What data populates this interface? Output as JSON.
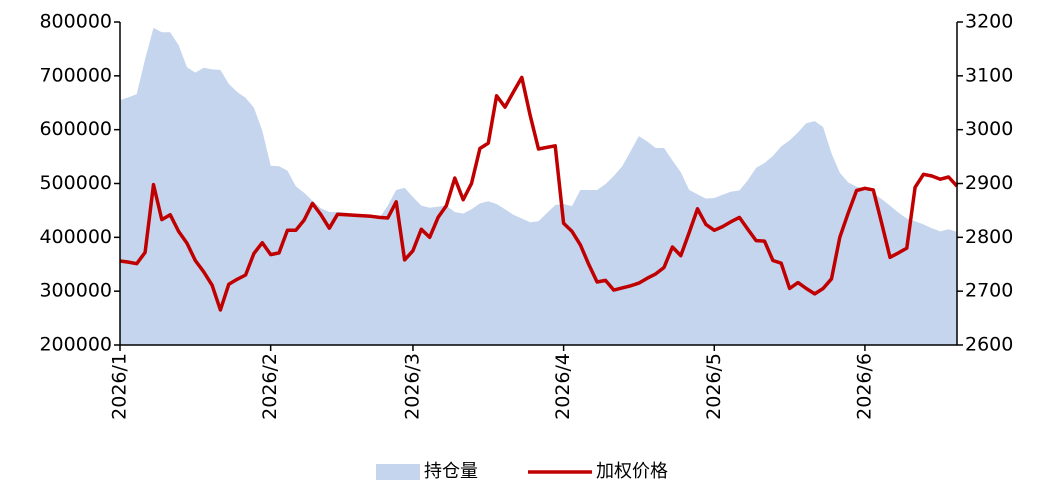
{
  "chart_data": {
    "type": "line",
    "categories": [
      "2026/1",
      null,
      null,
      null,
      null,
      null,
      null,
      null,
      null,
      null,
      null,
      null,
      null,
      null,
      null,
      null,
      null,
      null,
      "2026/2",
      null,
      null,
      null,
      null,
      null,
      null,
      null,
      null,
      null,
      null,
      null,
      null,
      null,
      null,
      null,
      null,
      "2026/3",
      null,
      null,
      null,
      null,
      null,
      null,
      null,
      null,
      null,
      null,
      null,
      null,
      null,
      null,
      null,
      null,
      null,
      "2026/4",
      null,
      null,
      null,
      null,
      null,
      null,
      null,
      null,
      null,
      null,
      null,
      null,
      null,
      null,
      null,
      null,
      null,
      "2026/5",
      null,
      null,
      null,
      null,
      null,
      null,
      null,
      null,
      null,
      null,
      null,
      null,
      null,
      null,
      null,
      null,
      null,
      "2026/6",
      null,
      null,
      null,
      null,
      null,
      null,
      null,
      null,
      null,
      null,
      null
    ],
    "series": [
      {
        "name": "持仓量",
        "type": "area",
        "axis": "y",
        "color": "#c5d5ee",
        "values": [
          655000,
          660000,
          666000,
          731000,
          789000,
          781000,
          781000,
          757000,
          716000,
          706000,
          715000,
          712000,
          711000,
          685000,
          670000,
          659000,
          641000,
          598000,
          533000,
          532000,
          524000,
          495000,
          483000,
          468000,
          454000,
          447000,
          447000,
          446000,
          444000,
          441000,
          438000,
          436000,
          459000,
          488000,
          492000,
          475000,
          459000,
          455000,
          457000,
          459000,
          447000,
          444000,
          452000,
          463000,
          467000,
          462000,
          452000,
          442000,
          435000,
          428000,
          430000,
          445000,
          460000,
          462000,
          458000,
          488000,
          488000,
          488000,
          499000,
          514000,
          532000,
          560000,
          588000,
          578000,
          566000,
          566000,
          543000,
          521000,
          488000,
          480000,
          472000,
          473000,
          479000,
          485000,
          487000,
          506000,
          529000,
          538000,
          551000,
          569000,
          580000,
          595000,
          612000,
          616000,
          605000,
          556000,
          520000,
          502000,
          494000,
          490000,
          482000,
          471000,
          459000,
          446000,
          435000,
          430000,
          424000,
          417000,
          411000,
          415000,
          410000
        ]
      },
      {
        "name": "加权价格",
        "type": "line",
        "axis": "y2",
        "color": "#c00000",
        "values": [
          2756,
          2754,
          2751,
          2772,
          2898,
          2833,
          2842,
          2811,
          2789,
          2757,
          2736,
          2711,
          2665,
          2713,
          2722,
          2730,
          2770,
          2790,
          2768,
          2771,
          2813,
          2813,
          2832,
          2863,
          2842,
          2817,
          2843,
          2842,
          2841,
          2840,
          2839,
          2837,
          2836,
          2866,
          2758,
          2775,
          2815,
          2800,
          2837,
          2859,
          2910,
          2870,
          2900,
          2965,
          2975,
          3063,
          3042,
          3070,
          3097,
          3027,
          2964,
          2967,
          2970,
          2826,
          2811,
          2786,
          2750,
          2717,
          2720,
          2702,
          2706,
          2710,
          2715,
          2724,
          2732,
          2744,
          2782,
          2766,
          2809,
          2853,
          2824,
          2813,
          2820,
          2829,
          2837,
          2815,
          2794,
          2793,
          2757,
          2752,
          2705,
          2716,
          2705,
          2695,
          2705,
          2723,
          2800,
          2845,
          2887,
          2891,
          2888,
          2826,
          2763,
          2771,
          2780,
          2893,
          2917,
          2914,
          2908,
          2912,
          2895
        ]
      }
    ],
    "ylim": [
      200000,
      800000
    ],
    "yticks": [
      200000,
      300000,
      400000,
      500000,
      600000,
      700000,
      800000
    ],
    "y2lim": [
      2600,
      3200
    ],
    "y2ticks": [
      2600,
      2700,
      2800,
      2900,
      3000,
      3100,
      3200
    ],
    "legend": "bottom"
  }
}
